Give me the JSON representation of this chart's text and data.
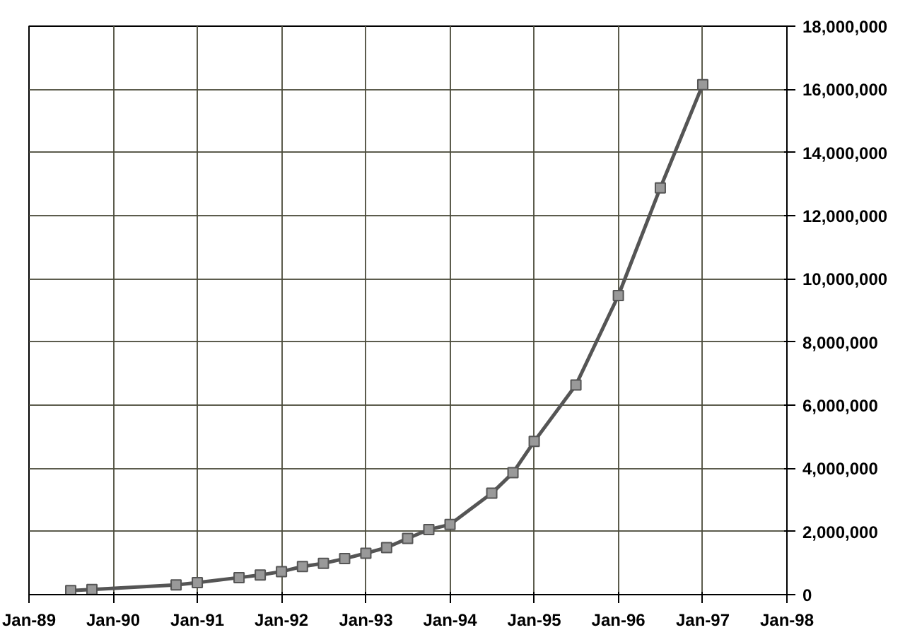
{
  "chart_data": {
    "type": "line",
    "marker": "square",
    "line_style": "solid",
    "grid": true,
    "x": [
      "1989-07",
      "1989-10",
      "1990-10",
      "1991-01",
      "1991-07",
      "1991-10",
      "1992-01",
      "1992-04",
      "1992-07",
      "1992-10",
      "1993-01",
      "1993-04",
      "1993-07",
      "1993-10",
      "1994-01",
      "1994-07",
      "1994-10",
      "1995-01",
      "1995-07",
      "1996-01",
      "1996-07",
      "1997-01"
    ],
    "series": [
      {
        "color": "#555555",
        "values": [
          130000,
          160000,
          310000,
          380000,
          540000,
          620000,
          730000,
          890000,
          990000,
          1140000,
          1310000,
          1490000,
          1780000,
          2060000,
          2220000,
          3210000,
          3860000,
          4850000,
          6640000,
          9470000,
          12880000,
          16150000
        ]
      }
    ],
    "xlim": [
      "1989-01",
      "1998-01"
    ],
    "xticks": [
      {
        "value": "1989-01",
        "label": "Jan-89"
      },
      {
        "value": "1990-01",
        "label": "Jan-90"
      },
      {
        "value": "1991-01",
        "label": "Jan-91"
      },
      {
        "value": "1992-01",
        "label": "Jan-92"
      },
      {
        "value": "1993-01",
        "label": "Jan-93"
      },
      {
        "value": "1994-01",
        "label": "Jan-94"
      },
      {
        "value": "1995-01",
        "label": "Jan-95"
      },
      {
        "value": "1996-01",
        "label": "Jan-96"
      },
      {
        "value": "1997-01",
        "label": "Jan-97"
      },
      {
        "value": "1998-01",
        "label": "Jan-98"
      }
    ],
    "ylim": [
      0,
      18000000
    ],
    "yticks": [
      0,
      {
        "value": 2000000,
        "label": "2,000,000"
      },
      {
        "value": 4000000,
        "label": "4,000,000"
      },
      {
        "value": 6000000,
        "label": "6,000,000"
      },
      {
        "value": 8000000,
        "label": "8,000,000"
      },
      {
        "value": 10000000,
        "label": "10,000,000"
      },
      {
        "value": 12000000,
        "label": "12,000,000"
      },
      {
        "value": 14000000,
        "label": "14,000,000"
      },
      {
        "value": 16000000,
        "label": "16,000,000"
      },
      {
        "value": 18000000,
        "label": "18,000,000"
      }
    ]
  }
}
